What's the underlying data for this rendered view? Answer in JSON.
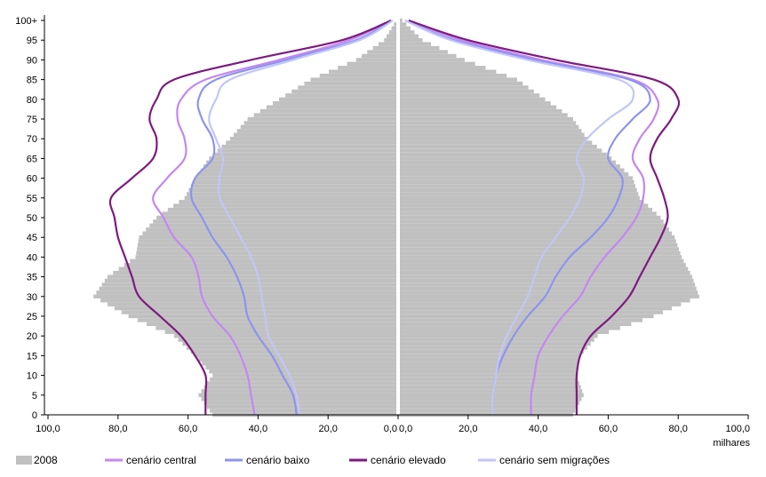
{
  "chart_data": {
    "type": "population-pyramid",
    "xlabel": "milhares",
    "x_ticks_left": [
      "100,0",
      "80,0",
      "60,0",
      "40,0",
      "20,0",
      "0,0"
    ],
    "x_ticks_right": [
      "0,0",
      "20,0",
      "40,0",
      "60,0",
      "80,0",
      "100,0"
    ],
    "xlim": [
      0,
      100
    ],
    "ylim": [
      0,
      100
    ],
    "y_ticks": [
      "0",
      "5",
      "10",
      "15",
      "20",
      "25",
      "30",
      "35",
      "40",
      "45",
      "50",
      "55",
      "60",
      "65",
      "70",
      "75",
      "80",
      "85",
      "90",
      "95",
      "100+"
    ],
    "bars_2008": {
      "name": "2008",
      "ages": [
        0,
        5,
        10,
        15,
        20,
        25,
        30,
        35,
        40,
        45,
        50,
        55,
        60,
        65,
        70,
        75,
        80,
        85,
        90,
        95,
        100
      ],
      "left": [
        53,
        57,
        53,
        58,
        64,
        77,
        87,
        83,
        75,
        74,
        69,
        61,
        58,
        54,
        48,
        43,
        34,
        25,
        12,
        4,
        0.5
      ],
      "right": [
        50,
        53,
        51,
        52,
        57,
        73,
        86,
        84,
        81,
        79,
        75,
        69,
        67,
        61,
        54,
        50,
        42,
        34,
        19,
        7,
        1.2
      ]
    },
    "series": [
      {
        "name": "cenário central",
        "color": "#c487f2",
        "ages": [
          0,
          5,
          10,
          15,
          20,
          25,
          30,
          35,
          40,
          45,
          50,
          55,
          60,
          65,
          70,
          75,
          80,
          85,
          90,
          95,
          100
        ],
        "left": [
          41,
          42,
          43,
          45,
          48,
          53,
          56,
          57,
          59,
          64,
          67,
          70,
          66,
          61,
          61,
          63,
          62,
          55,
          34,
          14,
          2
        ],
        "right": [
          38,
          38,
          39,
          40,
          43,
          47,
          52,
          55,
          59,
          64,
          68,
          70,
          70,
          67,
          69,
          73,
          74,
          67,
          41,
          18,
          3
        ]
      },
      {
        "name": "cenário baixo",
        "color": "#8d94ee",
        "ages": [
          0,
          5,
          10,
          15,
          20,
          25,
          30,
          35,
          40,
          45,
          50,
          55,
          60,
          65,
          70,
          75,
          80,
          85,
          90,
          95,
          100
        ],
        "left": [
          29,
          30,
          33,
          36,
          40,
          43,
          44,
          46,
          49,
          53,
          56,
          59,
          58,
          53,
          53,
          56,
          57,
          52,
          32,
          12,
          2
        ],
        "right": [
          27,
          27,
          28,
          30,
          33,
          37,
          42,
          45,
          49,
          55,
          60,
          63,
          64,
          60,
          62,
          67,
          72,
          66,
          39,
          16,
          2
        ]
      },
      {
        "name": "cenário elevado",
        "color": "#7d1a80",
        "ages": [
          0,
          5,
          10,
          15,
          20,
          25,
          30,
          35,
          40,
          45,
          50,
          55,
          60,
          65,
          70,
          75,
          80,
          85,
          90,
          95,
          100
        ],
        "left": [
          55,
          55,
          55,
          58,
          62,
          68,
          74,
          76,
          78,
          80,
          81,
          82,
          76,
          70,
          69,
          71,
          69,
          64,
          42,
          16,
          2
        ],
        "right": [
          51,
          51,
          51,
          52,
          55,
          61,
          66,
          69,
          72,
          75,
          77,
          76,
          74,
          72,
          74,
          78,
          80,
          73,
          45,
          20,
          3
        ]
      },
      {
        "name": "cenário sem migrações",
        "color": "#c2c6f7",
        "ages": [
          0,
          5,
          10,
          15,
          20,
          25,
          30,
          35,
          40,
          45,
          50,
          55,
          60,
          65,
          70,
          75,
          80,
          85,
          90,
          95,
          100
        ],
        "left": [
          28,
          29,
          31,
          34,
          37,
          38,
          39,
          40,
          42,
          45,
          48,
          51,
          51,
          50,
          52,
          54,
          52,
          48,
          30,
          11,
          1.5
        ],
        "right": [
          27,
          27,
          28,
          29,
          31,
          34,
          37,
          39,
          41,
          45,
          49,
          52,
          53,
          51,
          54,
          60,
          67,
          63,
          37,
          15,
          2
        ]
      }
    ],
    "legend": [
      {
        "label": "2008",
        "color": "#c0c0c0",
        "kind": "box"
      },
      {
        "label": "cenário central",
        "color": "#c487f2",
        "kind": "line"
      },
      {
        "label": "cenário baixo",
        "color": "#8d94ee",
        "kind": "line"
      },
      {
        "label": "cenário elevado",
        "color": "#7d1a80",
        "kind": "line"
      },
      {
        "label": "cenário sem migrações",
        "color": "#c2c6f7",
        "kind": "line"
      }
    ],
    "legend_position": "bottom",
    "grid": false,
    "colors": {
      "bars": "#c0c0c0",
      "axis": "#000000",
      "center_divider": "#ffffff"
    }
  }
}
